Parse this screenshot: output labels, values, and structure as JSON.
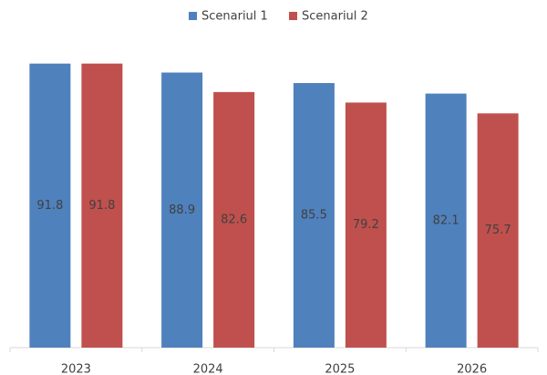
{
  "chart_data": {
    "type": "bar",
    "categories": [
      "2023",
      "2024",
      "2025",
      "2026"
    ],
    "series": [
      {
        "name": "Scenariul 1",
        "color": "#4f81bd",
        "values": [
          91.8,
          88.9,
          85.5,
          82.1
        ]
      },
      {
        "name": "Scenariul 2",
        "color": "#c0504d",
        "values": [
          91.8,
          82.6,
          79.2,
          75.7
        ]
      }
    ],
    "ylim": [
      0,
      92
    ],
    "legend": "top"
  }
}
